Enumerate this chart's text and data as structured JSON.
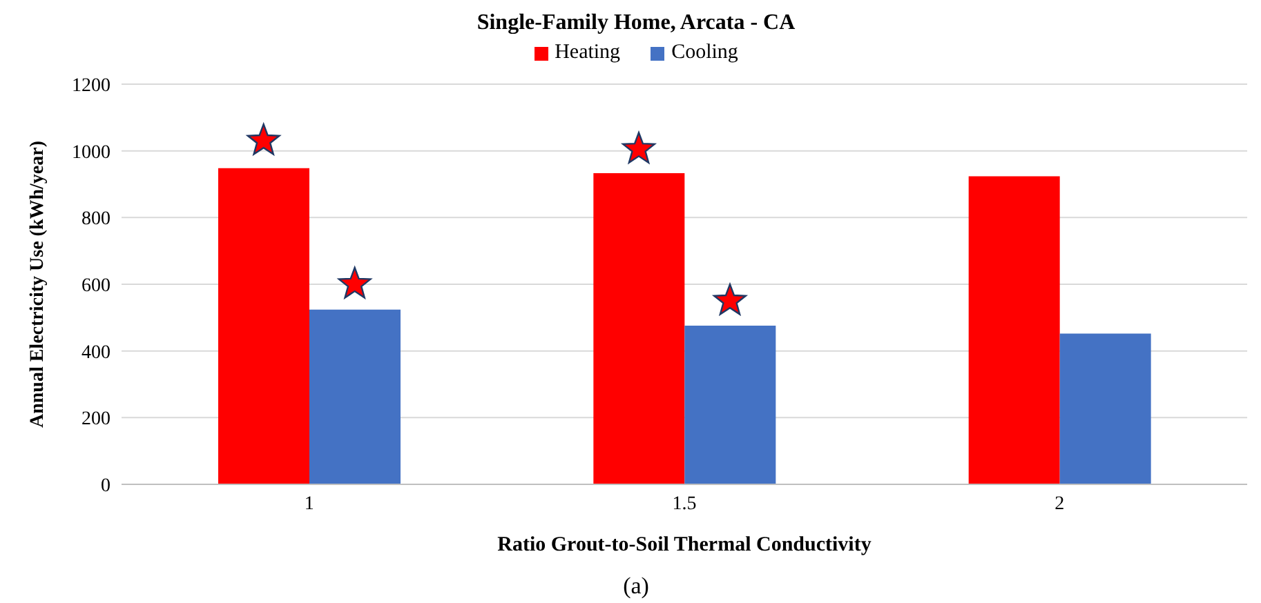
{
  "chart_data": {
    "type": "bar",
    "title": "Single-Family Home, Arcata  - CA",
    "xlabel": "Ratio Grout-to-Soil Thermal Conductivity",
    "ylabel": "Annual Electricity Use (kWh/year)",
    "categories": [
      "1",
      "1.5",
      "2"
    ],
    "series": [
      {
        "name": "Heating",
        "color": "#ff0000",
        "values": [
          948,
          933,
          924
        ]
      },
      {
        "name": "Cooling",
        "color": "#4472c4",
        "values": [
          524,
          476,
          452
        ]
      },
      {
        "type": "scatter",
        "marker": "star",
        "color": "#ff0000",
        "values": [
          1030,
          1005,
          null
        ]
      },
      {
        "type": "scatter",
        "marker": "star",
        "color": "#ff0000",
        "values": [
          600,
          550,
          null
        ]
      }
    ],
    "ylim": [
      0,
      1200
    ],
    "yticks": [
      0,
      200,
      400,
      600,
      800,
      1000,
      1200
    ],
    "grid": "y",
    "legend": "top",
    "annotations": [
      "(a)"
    ]
  }
}
